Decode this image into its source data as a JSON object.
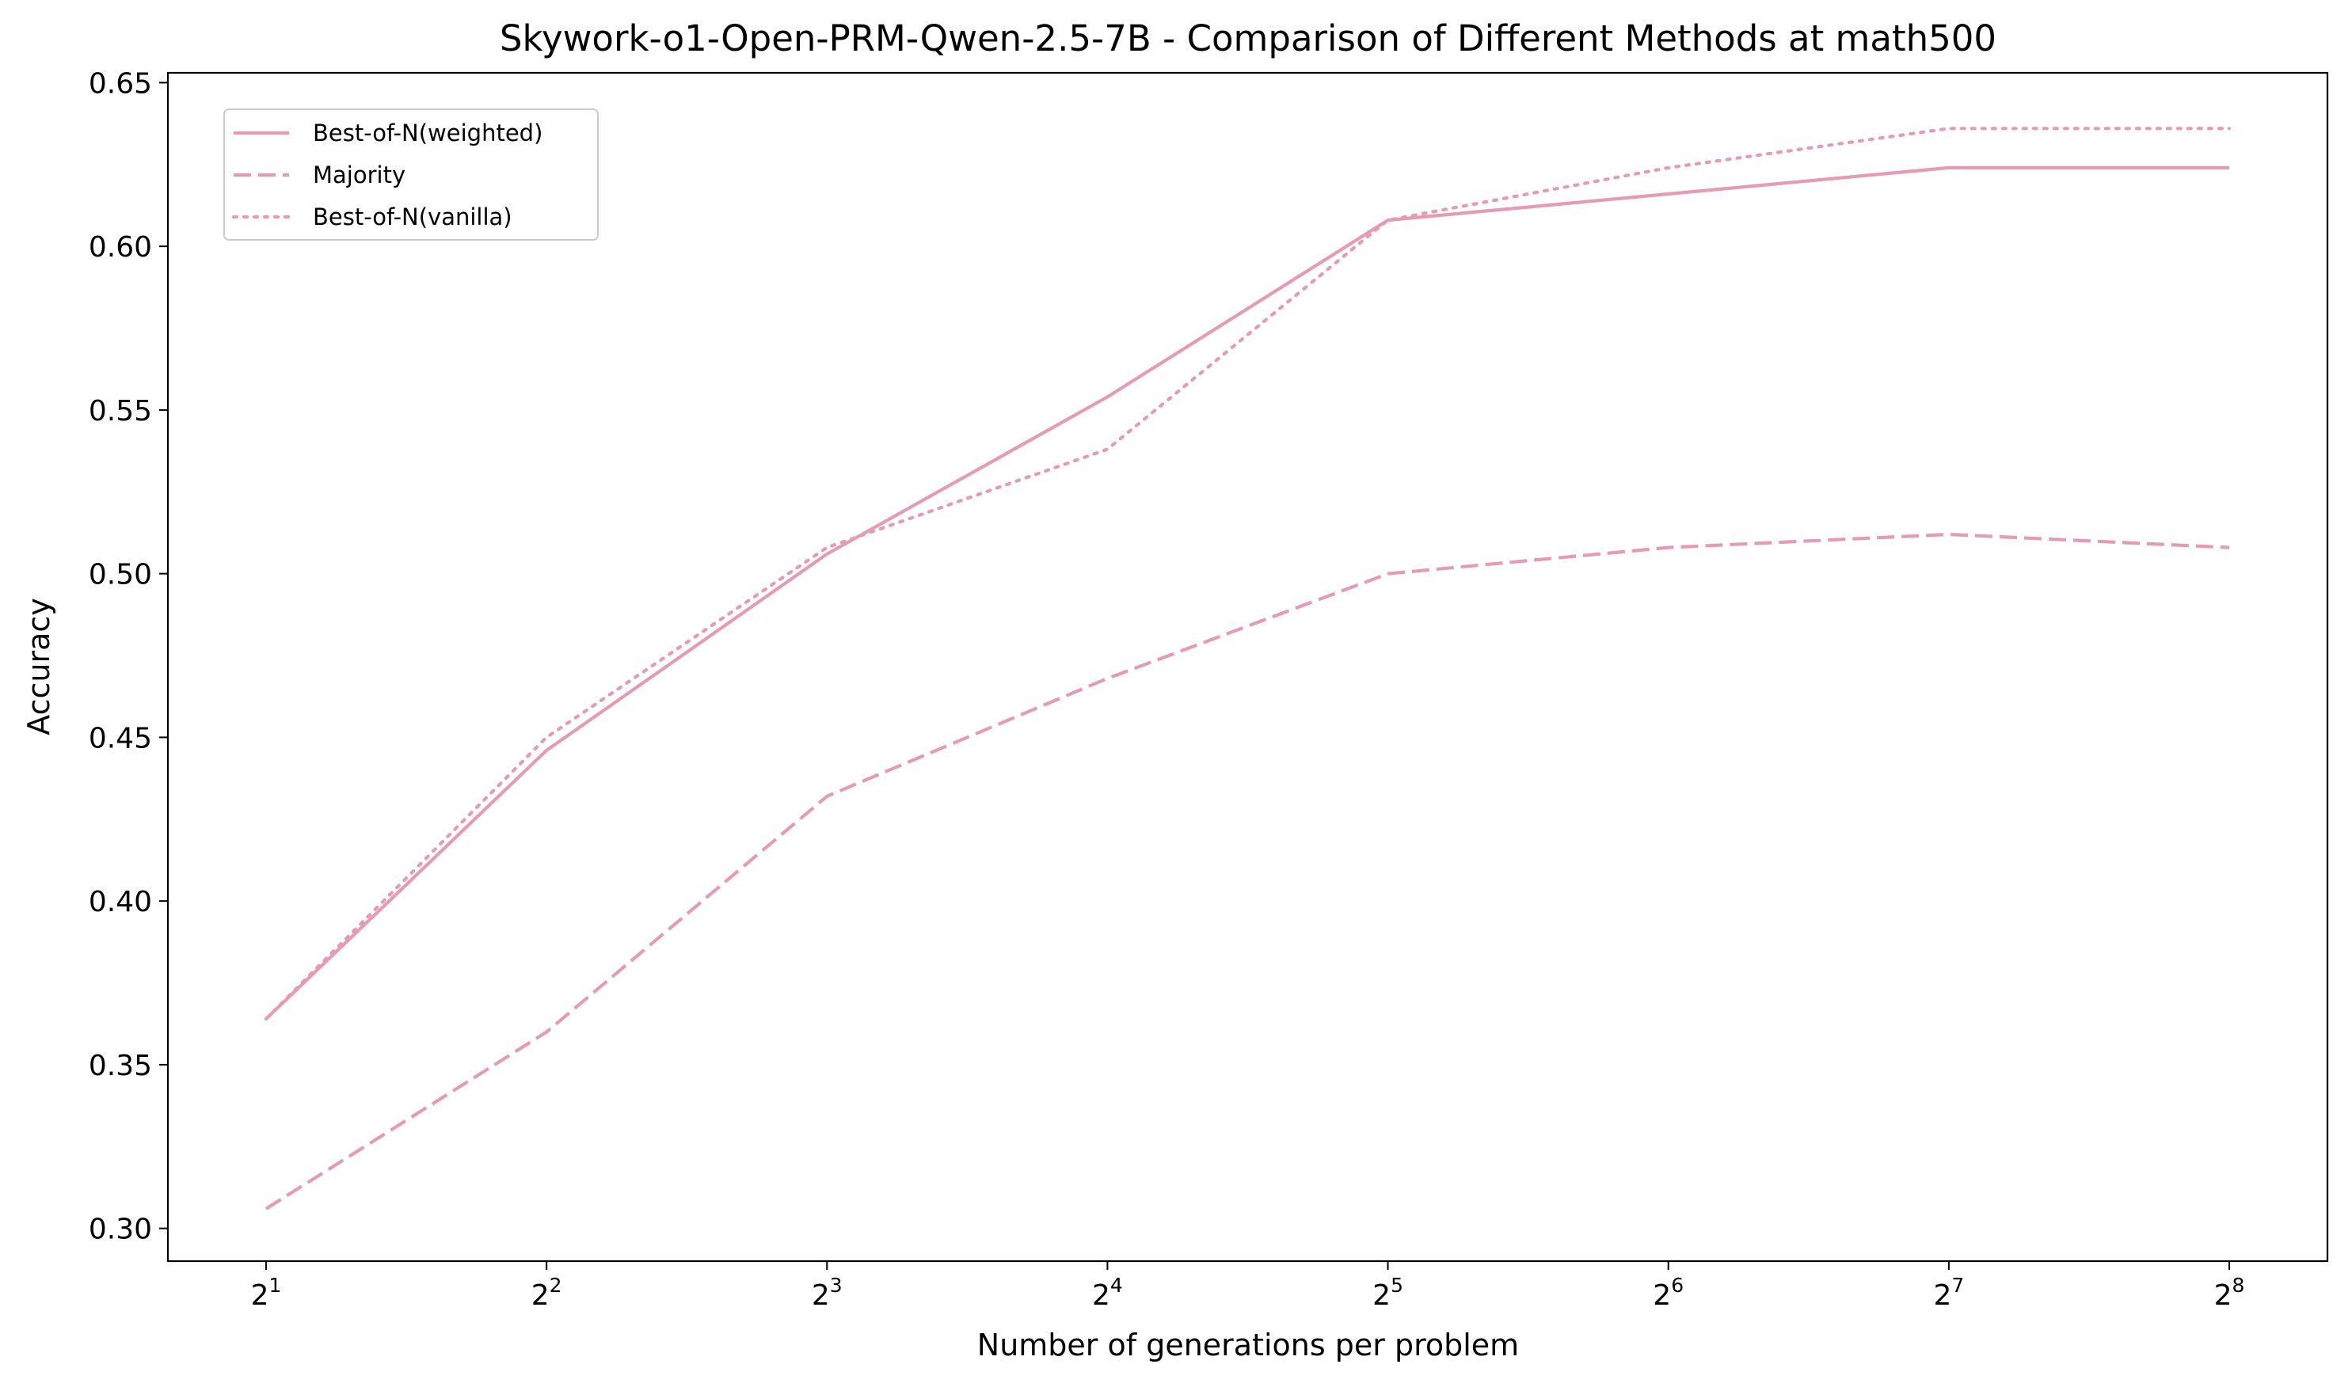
{
  "chart_data": {
    "type": "line",
    "title": "Skywork-o1-Open-PRM-Qwen-2.5-7B - Comparison of Different Methods at math500",
    "xlabel": "Number of generations per problem",
    "ylabel": "Accuracy",
    "x_scale": "log2",
    "x": [
      2,
      4,
      8,
      16,
      32,
      64,
      128,
      256
    ],
    "x_tick_labels": [
      {
        "base": "2",
        "exp": "1"
      },
      {
        "base": "2",
        "exp": "2"
      },
      {
        "base": "2",
        "exp": "3"
      },
      {
        "base": "2",
        "exp": "4"
      },
      {
        "base": "2",
        "exp": "5"
      },
      {
        "base": "2",
        "exp": "6"
      },
      {
        "base": "2",
        "exp": "7"
      },
      {
        "base": "2",
        "exp": "8"
      }
    ],
    "y_ticks": [
      0.3,
      0.35,
      0.4,
      0.45,
      0.5,
      0.55,
      0.6,
      0.65
    ],
    "y_tick_labels": [
      "0.30",
      "0.35",
      "0.40",
      "0.45",
      "0.50",
      "0.55",
      "0.60",
      "0.65"
    ],
    "ylim": [
      0.29,
      0.653
    ],
    "grid": false,
    "legend_position": "top-left",
    "series": [
      {
        "name": "Best-of-N(weighted)",
        "line_style": "solid",
        "color": "#e59ab5",
        "values": [
          0.364,
          0.446,
          0.506,
          0.554,
          0.608,
          0.616,
          0.624,
          0.624
        ]
      },
      {
        "name": "Majority",
        "line_style": "dashed",
        "color": "#e59ab5",
        "values": [
          0.306,
          0.36,
          0.432,
          0.468,
          0.5,
          0.508,
          0.512,
          0.508
        ]
      },
      {
        "name": "Best-of-N(vanilla)",
        "line_style": "dotted",
        "color": "#e59ab5",
        "values": [
          0.364,
          0.45,
          0.508,
          0.538,
          0.608,
          0.624,
          0.636,
          0.636
        ]
      }
    ]
  }
}
